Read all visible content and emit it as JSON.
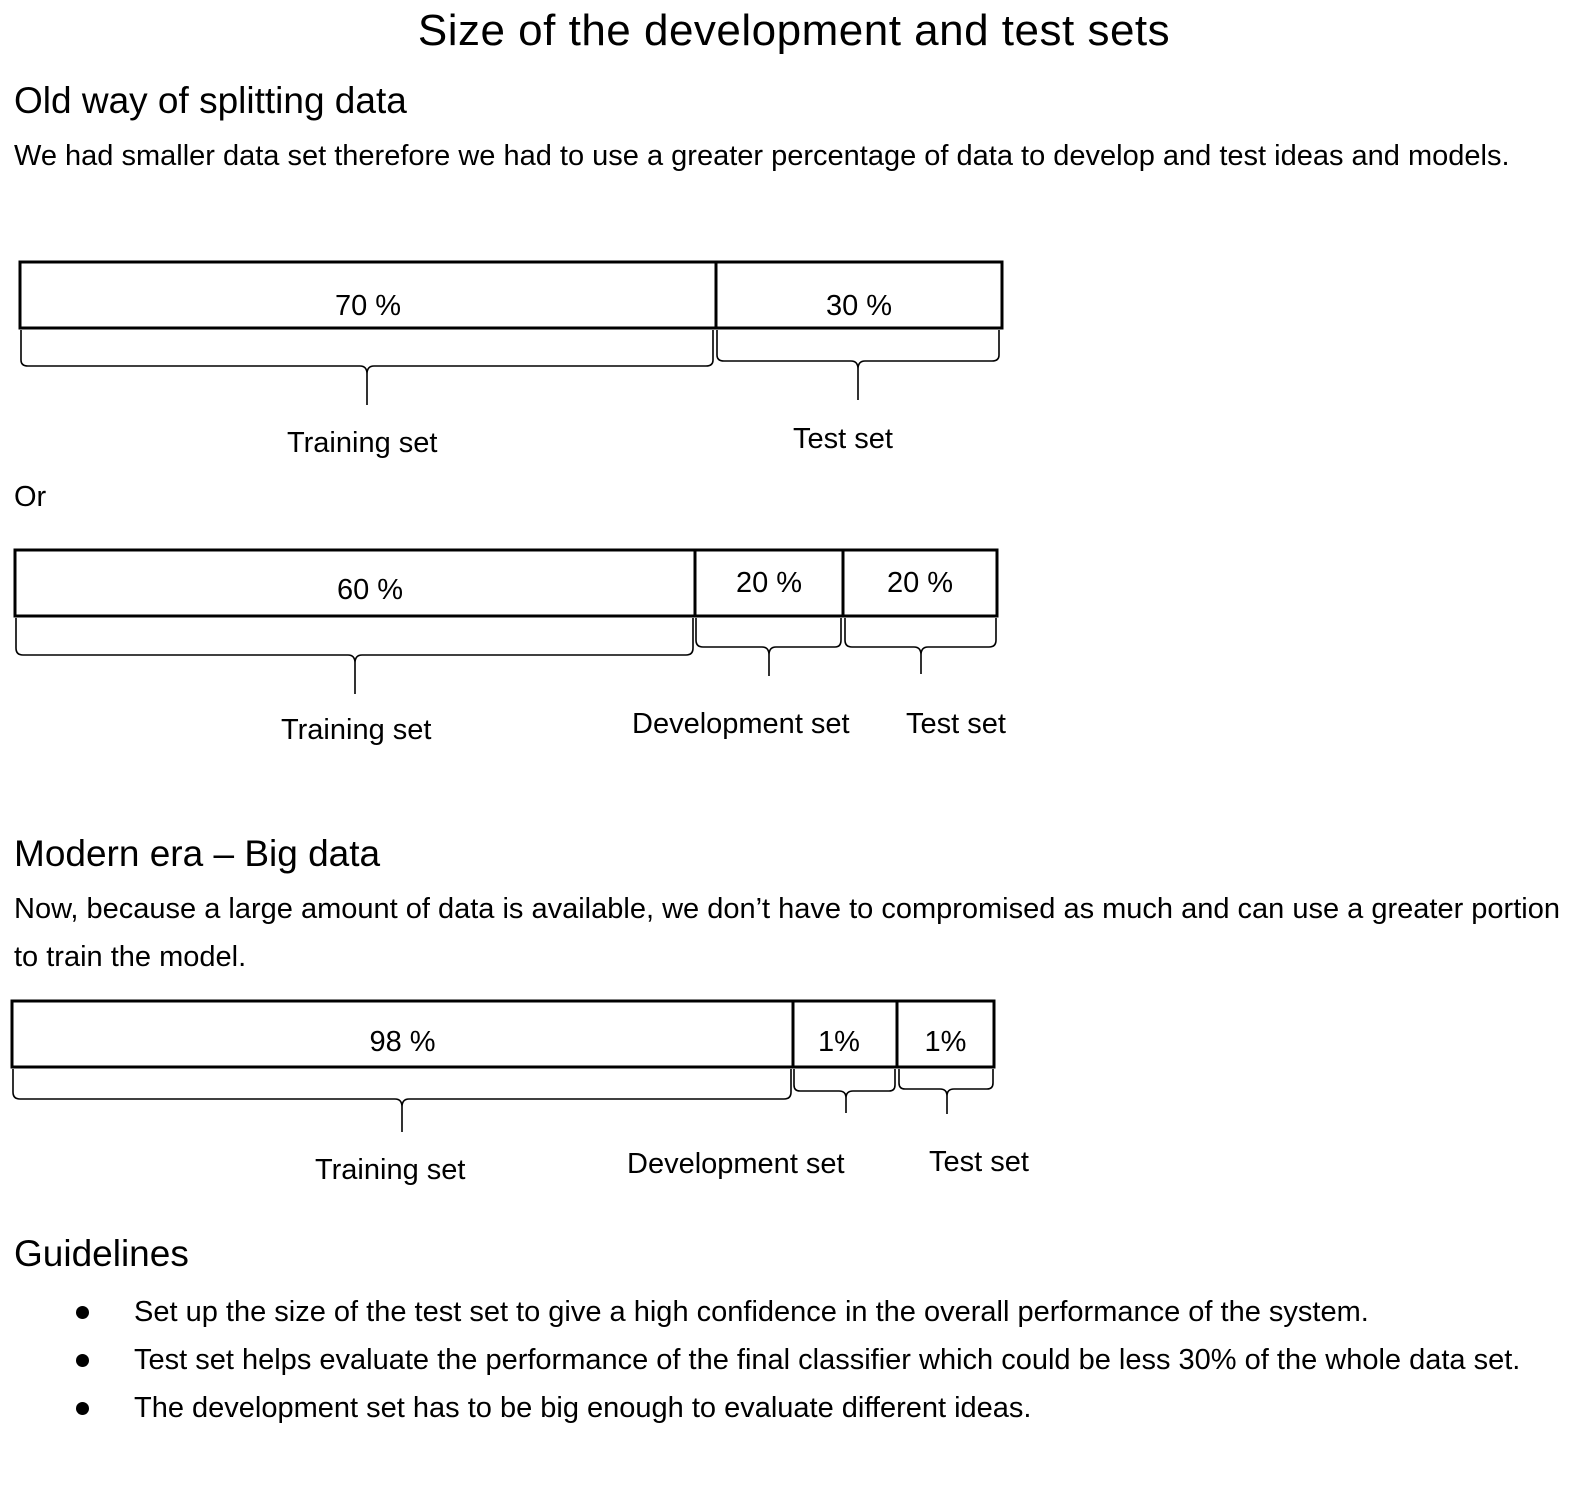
{
  "page_title": "Size of the development and test sets",
  "old_way": {
    "heading": "Old way of splitting data",
    "text": "We had smaller data set therefore we had to use a greater percentage of data to develop and test ideas and models.",
    "split1": {
      "segments": [
        {
          "label": "70 %",
          "share": 70
        },
        {
          "label": "30 %",
          "share": 30
        }
      ],
      "groups": [
        "Training set",
        "Test set"
      ]
    },
    "or_text": "Or",
    "split2": {
      "segments": [
        {
          "label": "60 %",
          "share": 60
        },
        {
          "label": "20 %",
          "share": 20
        },
        {
          "label": "20 %",
          "share": 20
        }
      ],
      "groups": [
        "Training set",
        "Development set",
        "Test set"
      ]
    }
  },
  "modern": {
    "heading": "Modern era – Big data",
    "text": "Now, because a large amount of data is available, we don’t have to compromised as much and can use a greater portion to train the model.",
    "split3": {
      "segments": [
        {
          "label": "98 %",
          "share": 98
        },
        {
          "label": "1%",
          "share": 1
        },
        {
          "label": "1%",
          "share": 1
        }
      ],
      "groups": [
        "Training set",
        "Development set",
        "Test set"
      ]
    }
  },
  "guidelines": {
    "heading": "Guidelines",
    "items": [
      "Set up the size of the test set to give a high confidence in the overall performance of the system.",
      "Test set helps evaluate the performance of the final classifier which could be less 30% of the whole data set.",
      "The development set has to be big enough to evaluate different ideas."
    ]
  }
}
